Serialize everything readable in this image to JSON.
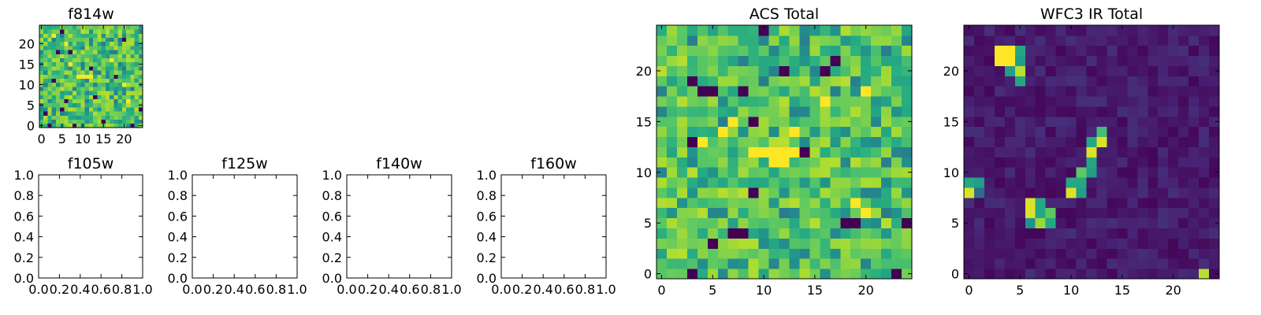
{
  "chart_data": [
    {
      "type": "heatmap",
      "title": "f814w",
      "colormap": "viridis",
      "nx": 25,
      "ny": 25,
      "xlim": [
        -0.5,
        24.5
      ],
      "ylim": [
        -0.5,
        24.5
      ],
      "xticks": [
        0,
        5,
        10,
        15,
        20
      ],
      "yticks": [
        0,
        5,
        10,
        15,
        20
      ],
      "pattern": "noise-high",
      "seed": 814,
      "low_cells": [
        [
          2,
          0
        ],
        [
          8,
          0
        ],
        [
          22,
          0
        ],
        [
          5,
          4
        ],
        [
          24,
          4
        ],
        [
          6,
          6
        ],
        [
          13,
          7
        ],
        [
          3,
          11
        ],
        [
          18,
          12
        ],
        [
          12,
          14
        ],
        [
          7,
          18
        ],
        [
          4,
          18
        ],
        [
          20,
          21
        ],
        [
          5,
          23
        ],
        [
          1,
          3
        ],
        [
          15,
          1
        ]
      ],
      "high_cells": [
        [
          9,
          12
        ],
        [
          10,
          12
        ],
        [
          11,
          12
        ],
        [
          12,
          12
        ],
        [
          7,
          15
        ],
        [
          17,
          16
        ],
        [
          6,
          20
        ],
        [
          20,
          10
        ],
        [
          3,
          22
        ],
        [
          21,
          6
        ]
      ]
    },
    {
      "type": "empty",
      "title": "f105w",
      "xlim": [
        0,
        1
      ],
      "ylim": [
        0,
        1
      ],
      "xticks": [
        "0.0",
        "0.2",
        "0.4",
        "0.6",
        "0.8",
        "1.0"
      ],
      "yticks": [
        "0.0",
        "0.2",
        "0.4",
        "0.6",
        "0.8",
        "1.0"
      ]
    },
    {
      "type": "empty",
      "title": "f125w",
      "xlim": [
        0,
        1
      ],
      "ylim": [
        0,
        1
      ],
      "xticks": [
        "0.0",
        "0.2",
        "0.4",
        "0.6",
        "0.8",
        "1.0"
      ],
      "yticks": [
        "0.0",
        "0.2",
        "0.4",
        "0.6",
        "0.8",
        "1.0"
      ]
    },
    {
      "type": "empty",
      "title": "f140w",
      "xlim": [
        0,
        1
      ],
      "ylim": [
        0,
        1
      ],
      "xticks": [
        "0.0",
        "0.2",
        "0.4",
        "0.6",
        "0.8",
        "1.0"
      ],
      "yticks": [
        "0.0",
        "0.2",
        "0.4",
        "0.6",
        "0.8",
        "1.0"
      ]
    },
    {
      "type": "empty",
      "title": "f160w",
      "xlim": [
        0,
        1
      ],
      "ylim": [
        0,
        1
      ],
      "xticks": [
        "0.0",
        "0.2",
        "0.4",
        "0.6",
        "0.8",
        "1.0"
      ],
      "yticks": [
        "0.0",
        "0.2",
        "0.4",
        "0.6",
        "0.8",
        "1.0"
      ]
    },
    {
      "type": "heatmap",
      "title": "ACS Total",
      "colormap": "viridis",
      "nx": 25,
      "ny": 25,
      "xlim": [
        -0.5,
        24.5
      ],
      "ylim": [
        -0.5,
        24.5
      ],
      "xticks": [
        0,
        5,
        10,
        15,
        20
      ],
      "yticks": [
        0,
        5,
        10,
        15,
        20
      ],
      "pattern": "noise-high",
      "seed": 1234,
      "low_cells": [
        [
          3,
          0
        ],
        [
          23,
          0
        ],
        [
          7,
          4
        ],
        [
          8,
          4
        ],
        [
          5,
          3
        ],
        [
          18,
          5
        ],
        [
          19,
          5
        ],
        [
          24,
          5
        ],
        [
          9,
          8
        ],
        [
          14,
          12
        ],
        [
          3,
          13
        ],
        [
          9,
          15
        ],
        [
          4,
          18
        ],
        [
          8,
          18
        ],
        [
          5,
          18
        ],
        [
          12,
          20
        ],
        [
          16,
          20
        ],
        [
          3,
          19
        ],
        [
          17,
          21
        ],
        [
          10,
          24
        ]
      ],
      "high_cells": [
        [
          10,
          12
        ],
        [
          11,
          12
        ],
        [
          12,
          12
        ],
        [
          13,
          12
        ],
        [
          9,
          12
        ],
        [
          12,
          11
        ],
        [
          11,
          11
        ],
        [
          6,
          14
        ],
        [
          7,
          15
        ],
        [
          19,
          7
        ],
        [
          20,
          6
        ],
        [
          13,
          14
        ],
        [
          20,
          18
        ],
        [
          4,
          13
        ],
        [
          16,
          17
        ]
      ]
    },
    {
      "type": "heatmap",
      "title": "WFC3 IR Total",
      "colormap": "viridis",
      "nx": 25,
      "ny": 25,
      "xlim": [
        -0.5,
        24.5
      ],
      "ylim": [
        -0.5,
        24.5
      ],
      "xticks": [
        0,
        5,
        10,
        15,
        20
      ],
      "yticks": [
        0,
        5,
        10,
        15,
        20
      ],
      "pattern": "noise-low",
      "seed": 3101,
      "hot_cells": [
        [
          3,
          21,
          1.0
        ],
        [
          4,
          21,
          1.0
        ],
        [
          3,
          22,
          1.0
        ],
        [
          4,
          22,
          1.0
        ],
        [
          5,
          22,
          0.6
        ],
        [
          5,
          21,
          0.55
        ],
        [
          4,
          20,
          0.55
        ],
        [
          5,
          20,
          0.9
        ],
        [
          5,
          19,
          0.6
        ],
        [
          0,
          9,
          0.6
        ],
        [
          1,
          9,
          0.55
        ],
        [
          0,
          8,
          0.95
        ],
        [
          1,
          8,
          0.35
        ],
        [
          6,
          7,
          0.95
        ],
        [
          6,
          6,
          0.95
        ],
        [
          7,
          7,
          0.6
        ],
        [
          7,
          6,
          0.6
        ],
        [
          7,
          5,
          0.85
        ],
        [
          8,
          6,
          0.75
        ],
        [
          8,
          5,
          0.6
        ],
        [
          6,
          5,
          0.5
        ],
        [
          10,
          9,
          0.6
        ],
        [
          11,
          9,
          0.6
        ],
        [
          10,
          8,
          0.95
        ],
        [
          11,
          8,
          0.55
        ],
        [
          11,
          10,
          0.75
        ],
        [
          12,
          10,
          0.55
        ],
        [
          12,
          11,
          0.6
        ],
        [
          12,
          12,
          0.95
        ],
        [
          13,
          13,
          0.95
        ],
        [
          13,
          14,
          0.7
        ],
        [
          12,
          13,
          0.6
        ],
        [
          23,
          0,
          0.9
        ]
      ]
    }
  ]
}
